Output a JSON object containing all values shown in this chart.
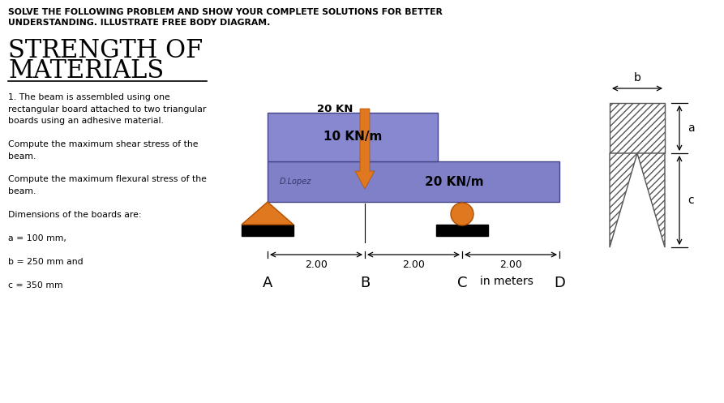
{
  "title_line1": "SOLVE THE FOLLOWING PROBLEM AND SHOW YOUR COMPLETE SOLUTIONS FOR BETTER",
  "title_line2": "UNDERSTANDING. ILLUSTRATE FREE BODY DIAGRAM.",
  "load1_label": "10 KN/m",
  "load2_label": "20 KN/m",
  "point_load_label": "20 KN",
  "dist_labels": [
    "2.00",
    "2.00",
    "2.00"
  ],
  "in_meters": "in meters",
  "author": "D.Lopez",
  "bg_color": "#ffffff",
  "beam_color_dark": "#7878c0",
  "beam_color_light": "#9090d8",
  "arrow_color": "#e07820",
  "triangle_support_color": "#e07820",
  "roller_color": "#e07820"
}
